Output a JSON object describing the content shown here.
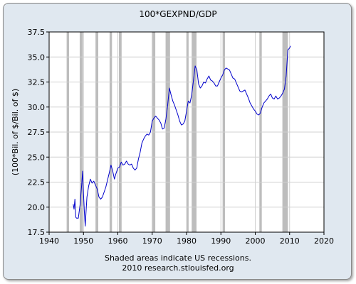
{
  "chart_data": {
    "type": "line",
    "title": "100*GEXPND/GDP",
    "xlabel": "",
    "ylabel": "(100*Bil. of $/Bil. of $)",
    "xlim": [
      1940,
      2020
    ],
    "ylim": [
      17.5,
      37.5
    ],
    "x_ticks": [
      "1940",
      "1950",
      "1960",
      "1970",
      "1980",
      "1990",
      "2000",
      "2010",
      "2020"
    ],
    "y_ticks": [
      "17.5",
      "20.0",
      "22.5",
      "25.0",
      "27.5",
      "30.0",
      "32.5",
      "35.0",
      "37.5"
    ],
    "grid": true,
    "line_color": "#0000cc",
    "recession_color": "#bdbdbd",
    "recessions": [
      [
        1945.1,
        1945.8
      ],
      [
        1948.9,
        1949.8
      ],
      [
        1953.5,
        1954.3
      ],
      [
        1957.6,
        1958.3
      ],
      [
        1960.3,
        1961.1
      ],
      [
        1969.9,
        1970.9
      ],
      [
        1973.9,
        1975.2
      ],
      [
        1980.0,
        1980.6
      ],
      [
        1981.5,
        1982.9
      ],
      [
        1990.5,
        1991.2
      ],
      [
        2001.2,
        2001.9
      ],
      [
        2007.9,
        2009.5
      ]
    ],
    "series": [
      {
        "x": [
          1947.0,
          1947.25,
          1947.5,
          1947.75,
          1948.0,
          1948.5,
          1949.0,
          1949.5,
          1949.75,
          1950.0,
          1950.25,
          1950.5,
          1950.75,
          1951.0,
          1951.5,
          1952.0,
          1952.5,
          1953.0,
          1953.5,
          1954.0,
          1954.5,
          1955.0,
          1955.5,
          1956.0,
          1956.5,
          1957.0,
          1957.5,
          1958.0,
          1958.5,
          1959.0,
          1959.5,
          1960.0,
          1960.5,
          1961.0,
          1961.5,
          1962.0,
          1962.5,
          1963.0,
          1963.5,
          1964.0,
          1964.5,
          1965.0,
          1965.5,
          1966.0,
          1966.5,
          1967.0,
          1967.5,
          1968.0,
          1968.5,
          1969.0,
          1969.5,
          1970.0,
          1970.5,
          1971.0,
          1971.5,
          1972.0,
          1972.5,
          1973.0,
          1973.5,
          1974.0,
          1974.5,
          1975.0,
          1975.5,
          1976.0,
          1976.5,
          1977.0,
          1977.5,
          1978.0,
          1978.5,
          1979.0,
          1979.5,
          1980.0,
          1980.5,
          1981.0,
          1981.5,
          1982.0,
          1982.5,
          1983.0,
          1983.5,
          1984.0,
          1984.5,
          1985.0,
          1985.5,
          1986.0,
          1986.5,
          1987.0,
          1987.5,
          1988.0,
          1988.5,
          1989.0,
          1989.5,
          1990.0,
          1990.5,
          1991.0,
          1991.5,
          1992.0,
          1992.5,
          1993.0,
          1993.5,
          1994.0,
          1994.5,
          1995.0,
          1995.5,
          1996.0,
          1996.5,
          1997.0,
          1997.5,
          1998.0,
          1998.5,
          1999.0,
          1999.5,
          2000.0,
          2000.5,
          2001.0,
          2001.5,
          2002.0,
          2002.5,
          2003.0,
          2003.5,
          2004.0,
          2004.5,
          2005.0,
          2005.5,
          2006.0,
          2006.5,
          2007.0,
          2007.5,
          2008.0,
          2008.5,
          2009.0,
          2009.25,
          2009.5,
          2010.0,
          2010.25
        ],
        "y": [
          20.3,
          19.8,
          20.8,
          19.0,
          18.9,
          18.9,
          20.2,
          22.3,
          23.6,
          21.3,
          19.5,
          18.1,
          19.6,
          21.0,
          22.1,
          22.8,
          22.4,
          22.6,
          22.2,
          21.8,
          21.0,
          20.8,
          21.0,
          21.5,
          22.0,
          22.7,
          23.4,
          24.2,
          23.6,
          22.8,
          23.4,
          23.9,
          24.0,
          24.5,
          24.2,
          24.3,
          24.6,
          24.3,
          24.2,
          24.3,
          23.9,
          23.7,
          23.9,
          24.8,
          25.5,
          26.4,
          26.8,
          27.1,
          27.3,
          27.2,
          27.5,
          28.6,
          28.9,
          29.1,
          28.9,
          28.7,
          28.4,
          27.8,
          27.9,
          28.8,
          30.2,
          31.9,
          31.2,
          30.6,
          30.2,
          29.7,
          29.2,
          28.6,
          28.2,
          28.3,
          28.6,
          29.6,
          30.6,
          30.4,
          31.2,
          32.6,
          34.1,
          33.7,
          32.3,
          31.9,
          32.1,
          32.5,
          32.4,
          32.8,
          33.1,
          32.7,
          32.6,
          32.4,
          32.1,
          32.1,
          32.5,
          32.9,
          33.2,
          33.7,
          33.9,
          33.8,
          33.7,
          33.3,
          32.9,
          32.8,
          32.4,
          32.0,
          31.6,
          31.5,
          31.6,
          31.7,
          31.3,
          30.9,
          30.4,
          30.1,
          29.8,
          29.6,
          29.3,
          29.2,
          29.4,
          30.0,
          30.4,
          30.6,
          30.8,
          31.1,
          31.3,
          30.9,
          30.8,
          31.1,
          30.8,
          30.9,
          31.1,
          31.4,
          31.8,
          33.1,
          34.4,
          35.7,
          35.9,
          36.1
        ]
      }
    ],
    "footer_note": "Shaded areas indicate US recessions.",
    "footer_source": "2010 research.stlouisfed.org"
  }
}
